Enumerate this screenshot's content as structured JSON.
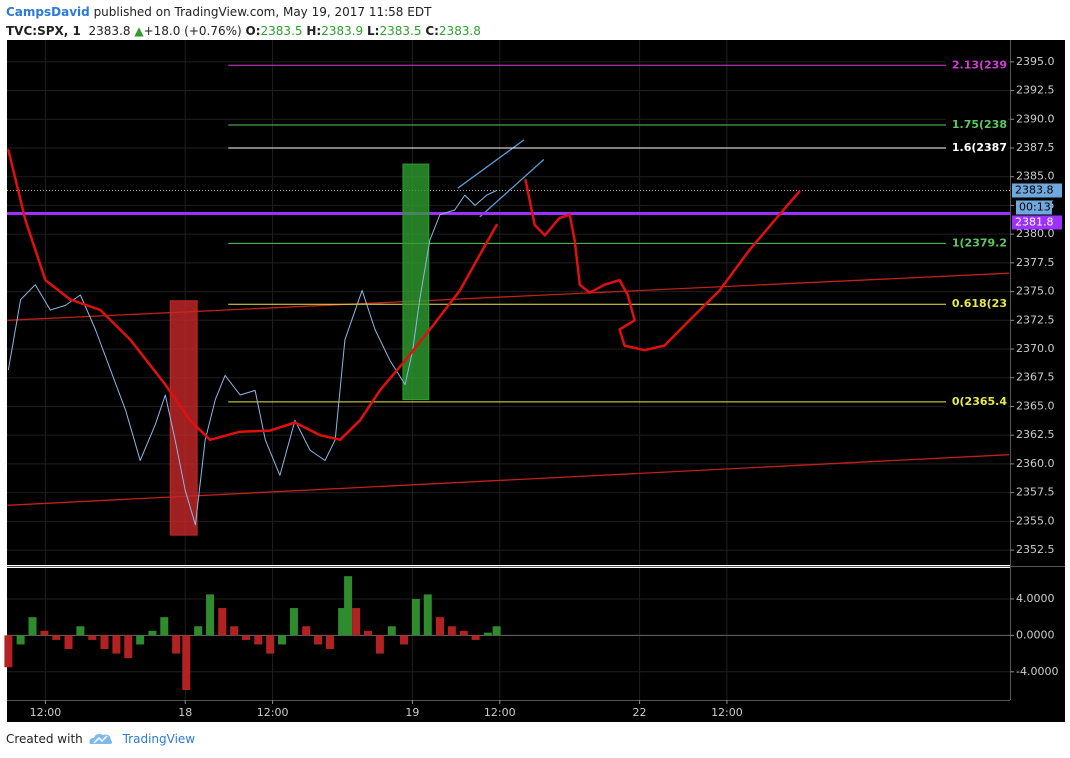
{
  "header": {
    "author": "CampsDavid",
    "published": "published on TradingView.com, May 19, 2017 11:58 EDT",
    "symbol": "TVC:SPX, 1",
    "last": "2383.8",
    "arrow": "▲",
    "change": "+18.0 (+0.76%)",
    "o_label": "O:",
    "o": "2383.5",
    "h_label": "H:",
    "h": "2383.9",
    "l_label": "L:",
    "l": "2383.5",
    "c_label": "C:",
    "c": "2383.8"
  },
  "footer": {
    "created": "Created with",
    "brand": "TradingView"
  },
  "chart_data": [
    {
      "type": "line",
      "xlim": [
        -5.1,
        23.6
      ],
      "ylim": [
        2351.2,
        2396.9
      ],
      "xticks": [
        {
          "value": -4,
          "label": "12:00"
        },
        {
          "value": 0,
          "label": "18"
        },
        {
          "value": 2.5,
          "label": "12:00"
        },
        {
          "value": 6.5,
          "label": "19"
        },
        {
          "value": 9,
          "label": "12:00"
        },
        {
          "value": 13,
          "label": "22"
        },
        {
          "value": 15.5,
          "label": "12:00"
        }
      ],
      "yticks": [
        {
          "value": 2352.5,
          "label": "2352.5"
        },
        {
          "value": 2355,
          "label": "2355.0"
        },
        {
          "value": 2357.5,
          "label": "2357.5"
        },
        {
          "value": 2360,
          "label": "2360.0"
        },
        {
          "value": 2362.5,
          "label": "2362.5"
        },
        {
          "value": 2365,
          "label": "2365.0"
        },
        {
          "value": 2367.5,
          "label": "2367.5"
        },
        {
          "value": 2370,
          "label": "2370.0"
        },
        {
          "value": 2372.5,
          "label": "2372.5"
        },
        {
          "value": 2375,
          "label": "2375.0"
        },
        {
          "value": 2377.5,
          "label": "2377.5"
        },
        {
          "value": 2380,
          "label": "2380.0"
        },
        {
          "value": 2382.5,
          "label": "2382.5"
        },
        {
          "value": 2385,
          "label": "2385.0"
        },
        {
          "value": 2387.5,
          "label": "2387.5"
        },
        {
          "value": 2390,
          "label": "2390.0"
        },
        {
          "value": 2392.5,
          "label": "2392.5"
        },
        {
          "value": 2395,
          "label": "2395.0"
        }
      ],
      "grid": true,
      "series": [
        {
          "color": "#8ab8e6",
          "x": [
            -5.06,
            -4.71,
            -4.29,
            -3.86,
            -3.43,
            -3.0,
            -2.57,
            -2.14,
            -1.71,
            -1.29,
            -0.86,
            -0.57,
            -0.29,
            0,
            0.29,
            0.57,
            0.86,
            1.14,
            1.57,
            2.0,
            2.29,
            2.71,
            3.14,
            3.57,
            4.0,
            4.29,
            4.57,
            5.06,
            5.43,
            5.86,
            6.29,
            6.51,
            6.71,
            7.0,
            7.29,
            7.71,
            8.0,
            8.29,
            8.63,
            8.91
          ],
          "values": [
            2368.2,
            2374.3,
            2375.6,
            2373.4,
            2373.8,
            2374.7,
            2371.7,
            2368.2,
            2364.7,
            2360.3,
            2363.4,
            2366.0,
            2362.1,
            2357.7,
            2354.7,
            2362.1,
            2365.6,
            2367.7,
            2366.0,
            2366.4,
            2362.1,
            2359.0,
            2363.8,
            2361.2,
            2360.3,
            2362.1,
            2370.8,
            2375.1,
            2371.7,
            2369.0,
            2366.9,
            2369.9,
            2374.3,
            2379.5,
            2381.7,
            2382.1,
            2383.4,
            2382.5,
            2383.4,
            2383.8
          ]
        },
        {
          "color": "#e01010",
          "x": [
            -5.06,
            -4.57,
            -4.0,
            -3.29,
            -2.43,
            -1.57,
            -0.57,
            0.14,
            0.71,
            1.57,
            2.43,
            3.14,
            3.86,
            4.43,
            5.0,
            5.57,
            6.29,
            7.0,
            7.86,
            8.43,
            8.91
          ],
          "values": [
            2387.3,
            2381.2,
            2376.0,
            2374.3,
            2373.4,
            2370.8,
            2366.9,
            2363.8,
            2362.1,
            2362.8,
            2362.9,
            2363.6,
            2362.5,
            2362.1,
            2363.8,
            2366.4,
            2369.0,
            2371.7,
            2375.1,
            2378.2,
            2380.8
          ]
        },
        {
          "color": "#e01010",
          "x": [
            9.74,
            10.0,
            10.29,
            10.71,
            11.0,
            11.14,
            11.29,
            11.57,
            12.0,
            12.43,
            12.66,
            12.86,
            12.43,
            12.57,
            13.14,
            13.71,
            14.43,
            15.29,
            16.14,
            16.86,
            17.57
          ],
          "values": [
            2384.7,
            2380.8,
            2379.9,
            2381.4,
            2381.7,
            2379.5,
            2375.6,
            2374.9,
            2375.6,
            2376.0,
            2374.7,
            2372.5,
            2371.7,
            2370.3,
            2369.9,
            2370.3,
            2372.5,
            2375.1,
            2378.6,
            2381.2,
            2383.7
          ]
        }
      ],
      "trend_lines": [
        {
          "color": "#c0201a",
          "x": [
            -5.09,
            23.57
          ],
          "values": [
            2372.5,
            2376.6
          ]
        },
        {
          "color": "#c0201a",
          "x": [
            -5.09,
            23.57
          ],
          "values": [
            2356.4,
            2360.8
          ]
        },
        {
          "color": "#5b9bd5",
          "x": [
            7.8,
            9.69
          ],
          "values": [
            2384.0,
            2388.2
          ]
        },
        {
          "color": "#5b9bd5",
          "x": [
            8.43,
            10.26
          ],
          "values": [
            2381.5,
            2386.5
          ]
        }
      ],
      "boxes": [
        {
          "color": "#c62828",
          "x": [
            -0.43,
            0.34
          ],
          "values": [
            2353.8,
            2374.2
          ]
        },
        {
          "color": "#2e9e2e",
          "x": [
            6.23,
            6.97
          ],
          "values": [
            2365.6,
            2386.1
          ]
        }
      ],
      "fib_x": [
        1.23,
        23.5
      ],
      "fib_levels": [
        {
          "label": "2.13(239",
          "value": 2394.7,
          "color": "#d63ad6"
        },
        {
          "label": "1.75(238",
          "value": 2389.5,
          "color": "#5cc85c"
        },
        {
          "label": "1.6(2387",
          "value": 2387.5,
          "color": "#ffffff"
        },
        {
          "label": "1(2379.2",
          "value": 2379.2,
          "color": "#5cc85c"
        },
        {
          "label": "0.618(23",
          "value": 2373.9,
          "color": "#e8e84a"
        },
        {
          "label": "0(2365.4",
          "value": 2365.4,
          "color": "#e8e84a"
        }
      ],
      "level": {
        "value": 2381.8,
        "color": "#9b30ff"
      },
      "last_price": {
        "value": 2383.8,
        "color": "#6fa8dc"
      },
      "countdown": "00:13"
    },
    {
      "type": "bar",
      "xlim": [
        -5.1,
        23.6
      ],
      "ylim": [
        -7.1,
        7.4
      ],
      "yticks": [
        {
          "value": -4,
          "label": "-4.0000"
        },
        {
          "value": 0,
          "label": "0.0000"
        },
        {
          "value": 4,
          "label": "4.0000"
        }
      ],
      "up_color": "#2e8b2e",
      "down_color": "#b22222",
      "x": [
        -5.06,
        -4.71,
        -4.37,
        -4.03,
        -3.69,
        -3.34,
        -3.0,
        -2.66,
        -2.31,
        -1.97,
        -1.63,
        -1.29,
        -0.94,
        -0.6,
        -0.26,
        0.03,
        0.37,
        0.71,
        1.06,
        1.4,
        1.74,
        2.09,
        2.43,
        2.77,
        3.11,
        3.46,
        3.8,
        4.14,
        4.49,
        4.66,
        4.89,
        5.23,
        5.57,
        5.91,
        6.26,
        6.6,
        6.94,
        7.29,
        7.63,
        7.97,
        8.31,
        8.66,
        8.91
      ],
      "values": [
        -3.5,
        -1,
        2,
        0.5,
        -0.5,
        -1.5,
        1,
        -0.5,
        -1.5,
        -2,
        -2.5,
        -1,
        0.5,
        2,
        -2,
        -6,
        1,
        4.5,
        3,
        1,
        -0.5,
        -1,
        -2,
        -1,
        3,
        1,
        -1,
        -1.5,
        3,
        6.5,
        3,
        0.5,
        -2,
        1,
        -1,
        4,
        4.5,
        2,
        1,
        0.5,
        -0.5,
        0.3,
        1
      ]
    }
  ]
}
